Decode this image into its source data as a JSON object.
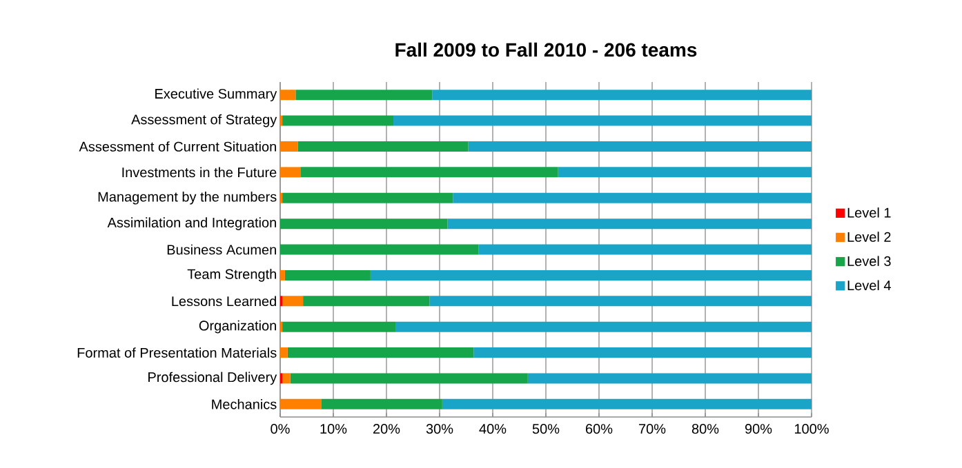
{
  "chart_data": {
    "type": "bar",
    "orientation": "horizontal",
    "stacked": true,
    "title": "Fall 2009 to Fall 2010 - 206 teams",
    "categories": [
      "Executive Summary",
      "Assessment of Strategy",
      "Assessment of Current Situation",
      "Investments in the Future",
      "Management by the numbers",
      "Assimilation and Integration",
      "Business Acumen",
      "Team Strength",
      "Lessons Learned",
      "Organization",
      "Format of Presentation Materials",
      "Professional Delivery",
      "Mechanics"
    ],
    "series": [
      {
        "name": "Level 1",
        "color": "#ff0000",
        "values": [
          0,
          0,
          0,
          0,
          0,
          0,
          0,
          0,
          0.4,
          0,
          0,
          0.4,
          0
        ]
      },
      {
        "name": "Level 2",
        "color": "#ff8000",
        "values": [
          2.9,
          0.4,
          3.3,
          3.8,
          0.4,
          0,
          0,
          0.9,
          3.9,
          0.4,
          1.4,
          1.5,
          7.7
        ]
      },
      {
        "name": "Level 3",
        "color": "#17a54b",
        "values": [
          25.7,
          20.9,
          32.1,
          48.5,
          32.1,
          31.5,
          37.3,
          16.1,
          23.8,
          21.4,
          35.0,
          44.7,
          22.8
        ]
      },
      {
        "name": "Level 4",
        "color": "#1aa5c8",
        "values": [
          71.4,
          78.7,
          64.6,
          47.7,
          67.5,
          68.5,
          62.7,
          83.0,
          71.9,
          78.2,
          63.6,
          53.4,
          69.5
        ]
      }
    ],
    "xlim": [
      0,
      100
    ],
    "xticks": [
      {
        "value": 0,
        "label": "0%"
      },
      {
        "value": 10,
        "label": "10%"
      },
      {
        "value": 20,
        "label": "20%"
      },
      {
        "value": 30,
        "label": "30%"
      },
      {
        "value": 40,
        "label": "40%"
      },
      {
        "value": 50,
        "label": "50%"
      },
      {
        "value": 60,
        "label": "60%"
      },
      {
        "value": 70,
        "label": "70%"
      },
      {
        "value": 80,
        "label": "80%"
      },
      {
        "value": 90,
        "label": "90%"
      },
      {
        "value": 100,
        "label": "100%"
      }
    ],
    "grid": "x",
    "legend": "right"
  }
}
